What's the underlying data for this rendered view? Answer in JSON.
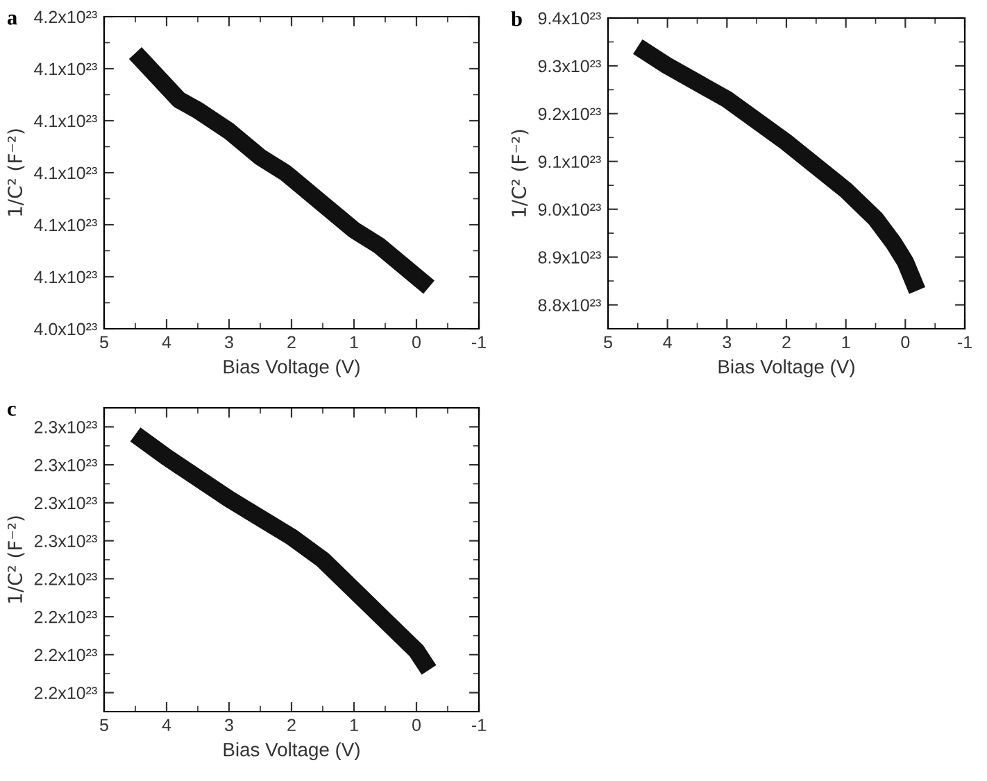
{
  "chart_data": [
    {
      "type": "line",
      "title": "a",
      "xlabel": "Bias Voltage (V)",
      "ylabel": "1/C² (F⁻²)",
      "xlim": [
        5,
        -1
      ],
      "xticks": [
        5,
        4,
        3,
        2,
        1,
        0,
        -1,
        {
          "value": 4.5,
          "label": null
        },
        {
          "value": 3.5,
          "label": null
        },
        {
          "value": 2.5,
          "label": null
        },
        {
          "value": 1.5,
          "label": null
        },
        {
          "value": 0.5,
          "label": null
        },
        {
          "value": -0.5,
          "label": null
        }
      ],
      "ylim": [
        4.04e+23,
        4.16e+23
      ],
      "yticks": [
        {
          "value": 4.04e+23,
          "label": "4.0x10²³"
        },
        {
          "value": 4.06e+23,
          "label": "4.1x10²³"
        },
        {
          "value": 4.08e+23,
          "label": "4.1x10²³"
        },
        {
          "value": 4.1e+23,
          "label": "4.1x10²³"
        },
        {
          "value": 4.12e+23,
          "label": "4.1x10²³"
        },
        {
          "value": 4.14e+23,
          "label": "4.1x10²³"
        },
        {
          "value": 4.16e+23,
          "label": "4.2x10²³"
        },
        {
          "value": 4.05e+23,
          "label": null
        },
        {
          "value": 4.07e+23,
          "label": null
        },
        {
          "value": 4.09e+23,
          "label": null
        },
        {
          "value": 4.11e+23,
          "label": null
        },
        {
          "value": 4.13e+23,
          "label": null
        },
        {
          "value": 4.15e+23,
          "label": null
        }
      ],
      "grid": false,
      "marker": "none",
      "line_style": "solid",
      "x": [
        4.5,
        3.8,
        3.5,
        3.0,
        2.5,
        2.1,
        1.5,
        1.0,
        0.6,
        0.2,
        -0.2
      ],
      "series": [
        {
          "color": "#111111",
          "values": [
            4.146e+23,
            4.128e+23,
            4.124e+23,
            4.116e+23,
            4.106e+23,
            4.1e+23,
            4.088e+23,
            4.078e+23,
            4.072e+23,
            4.064e+23,
            4.056e+23
          ]
        }
      ]
    },
    {
      "type": "line",
      "title": "b",
      "xlabel": "Bias Voltage (V)",
      "ylabel": "1/C² (F⁻²)",
      "xlim": [
        5,
        -1
      ],
      "xticks": [
        5,
        4,
        3,
        2,
        1,
        0,
        -1,
        {
          "value": 4.5,
          "label": null
        },
        {
          "value": 3.5,
          "label": null
        },
        {
          "value": 2.5,
          "label": null
        },
        {
          "value": 1.5,
          "label": null
        },
        {
          "value": 0.5,
          "label": null
        },
        {
          "value": -0.5,
          "label": null
        }
      ],
      "ylim": [
        8.75e+23,
        9.4e+23
      ],
      "yticks": [
        {
          "value": 8.8e+23,
          "label": "8.8x10²³"
        },
        {
          "value": 8.9e+23,
          "label": "8.9x10²³"
        },
        {
          "value": 9e+23,
          "label": "9.0x10²³"
        },
        {
          "value": 9.1e+23,
          "label": "9.1x10²³"
        },
        {
          "value": 9.2e+23,
          "label": "9.2x10²³"
        },
        {
          "value": 9.3e+23,
          "label": "9.3x10²³"
        },
        {
          "value": 9.4e+23,
          "label": "9.4x10²³"
        },
        {
          "value": 8.85e+23,
          "label": null
        },
        {
          "value": 8.95e+23,
          "label": null
        },
        {
          "value": 9.05e+23,
          "label": null
        },
        {
          "value": 9.15e+23,
          "label": null
        },
        {
          "value": 9.25e+23,
          "label": null
        },
        {
          "value": 9.35e+23,
          "label": null
        }
      ],
      "grid": false,
      "marker": "none",
      "line_style": "solid",
      "x": [
        4.5,
        4.0,
        3.0,
        2.0,
        1.0,
        0.5,
        0.2,
        0.0,
        -0.2
      ],
      "series": [
        {
          "color": "#111111",
          "values": [
            9.34e+23,
            9.3e+23,
            9.23e+23,
            9.14e+23,
            9.04e+23,
            8.98e+23,
            8.93e+23,
            8.89e+23,
            8.83e+23
          ]
        }
      ]
    },
    {
      "type": "line",
      "title": "c",
      "xlabel": "Bias Voltage (V)",
      "ylabel": "1/C² (F⁻²)",
      "xlim": [
        5,
        -1
      ],
      "xticks": [
        5,
        4,
        3,
        2,
        1,
        0,
        -1,
        {
          "value": 4.5,
          "label": null
        },
        {
          "value": 3.5,
          "label": null
        },
        {
          "value": 2.5,
          "label": null
        },
        {
          "value": 1.5,
          "label": null
        },
        {
          "value": 0.5,
          "label": null
        },
        {
          "value": -0.5,
          "label": null
        }
      ],
      "ylim": [
        2.21e+23,
        2.29e+23
      ],
      "yticks": [
        {
          "value": 2.215e+23,
          "label": "2.2x10²³"
        },
        {
          "value": 2.225e+23,
          "label": "2.2x10²³"
        },
        {
          "value": 2.235e+23,
          "label": "2.2x10²³"
        },
        {
          "value": 2.245e+23,
          "label": "2.2x10²³"
        },
        {
          "value": 2.255e+23,
          "label": "2.3x10²³"
        },
        {
          "value": 2.265e+23,
          "label": "2.3x10²³"
        },
        {
          "value": 2.275e+23,
          "label": "2.3x10²³"
        },
        {
          "value": 2.285e+23,
          "label": "2.3x10²³"
        },
        {
          "value": 2.22e+23,
          "label": null
        },
        {
          "value": 2.23e+23,
          "label": null
        },
        {
          "value": 2.24e+23,
          "label": null
        },
        {
          "value": 2.25e+23,
          "label": null
        },
        {
          "value": 2.26e+23,
          "label": null
        },
        {
          "value": 2.27e+23,
          "label": null
        },
        {
          "value": 2.28e+23,
          "label": null
        }
      ],
      "grid": false,
      "marker": "none",
      "line_style": "solid",
      "x": [
        4.5,
        4.0,
        3.0,
        2.0,
        1.5,
        1.0,
        0.5,
        0.0,
        -0.2
      ],
      "series": [
        {
          "color": "#111111",
          "values": [
            2.283e+23,
            2.277e+23,
            2.266e+23,
            2.256e+23,
            2.25e+23,
            2.242e+23,
            2.234e+23,
            2.226e+23,
            2.221e+23
          ]
        }
      ]
    }
  ]
}
